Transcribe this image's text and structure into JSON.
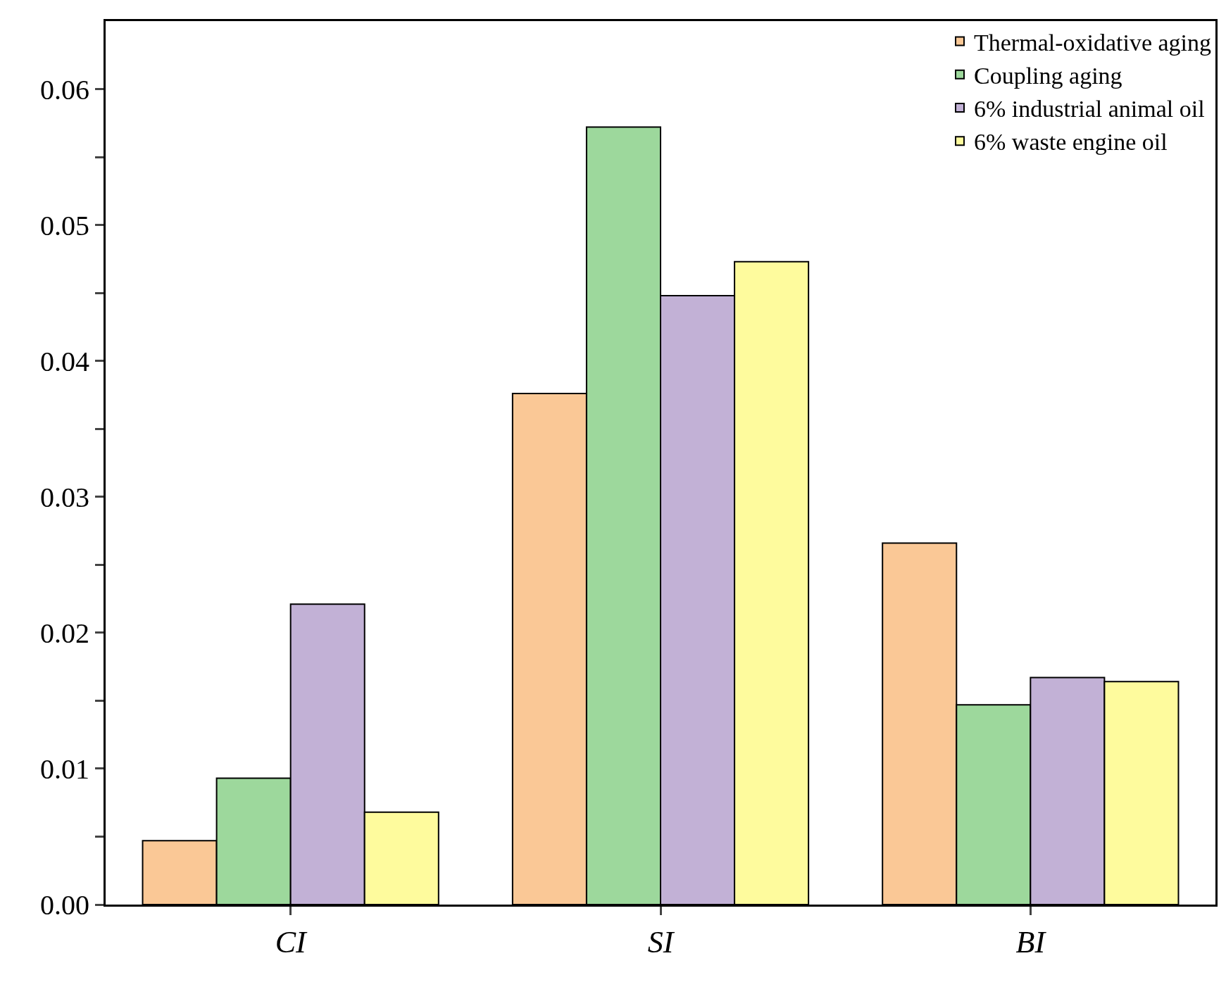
{
  "chart_data": {
    "type": "bar",
    "categories": [
      "CI",
      "SI",
      "BI"
    ],
    "series": [
      {
        "name": "Thermal-oxidative aging",
        "color": "#fac896",
        "values": [
          0.0047,
          0.0376,
          0.0266
        ]
      },
      {
        "name": "Coupling aging",
        "color": "#9dd89c",
        "values": [
          0.0093,
          0.0572,
          0.0147
        ]
      },
      {
        "name": "6% industrial animal oil",
        "color": "#c2b1d6",
        "values": [
          0.0221,
          0.0448,
          0.0167
        ]
      },
      {
        "name": "6% waste engine oil",
        "color": "#fefb9d",
        "values": [
          0.0068,
          0.0473,
          0.0164
        ]
      }
    ],
    "ylim": [
      0,
      0.065
    ],
    "yticks": [
      {
        "value": 0,
        "label": "0.00"
      },
      {
        "value": 0.005,
        "label": null
      },
      {
        "value": 0.01,
        "label": "0.01"
      },
      {
        "value": 0.015,
        "label": null
      },
      {
        "value": 0.02,
        "label": "0.02"
      },
      {
        "value": 0.025,
        "label": null
      },
      {
        "value": 0.03,
        "label": "0.03"
      },
      {
        "value": 0.035,
        "label": null
      },
      {
        "value": 0.04,
        "label": "0.04"
      },
      {
        "value": 0.045,
        "label": null
      },
      {
        "value": 0.05,
        "label": "0.05"
      },
      {
        "value": 0.055,
        "label": null
      },
      {
        "value": 0.06,
        "label": "0.06"
      }
    ],
    "legend": "top right"
  }
}
